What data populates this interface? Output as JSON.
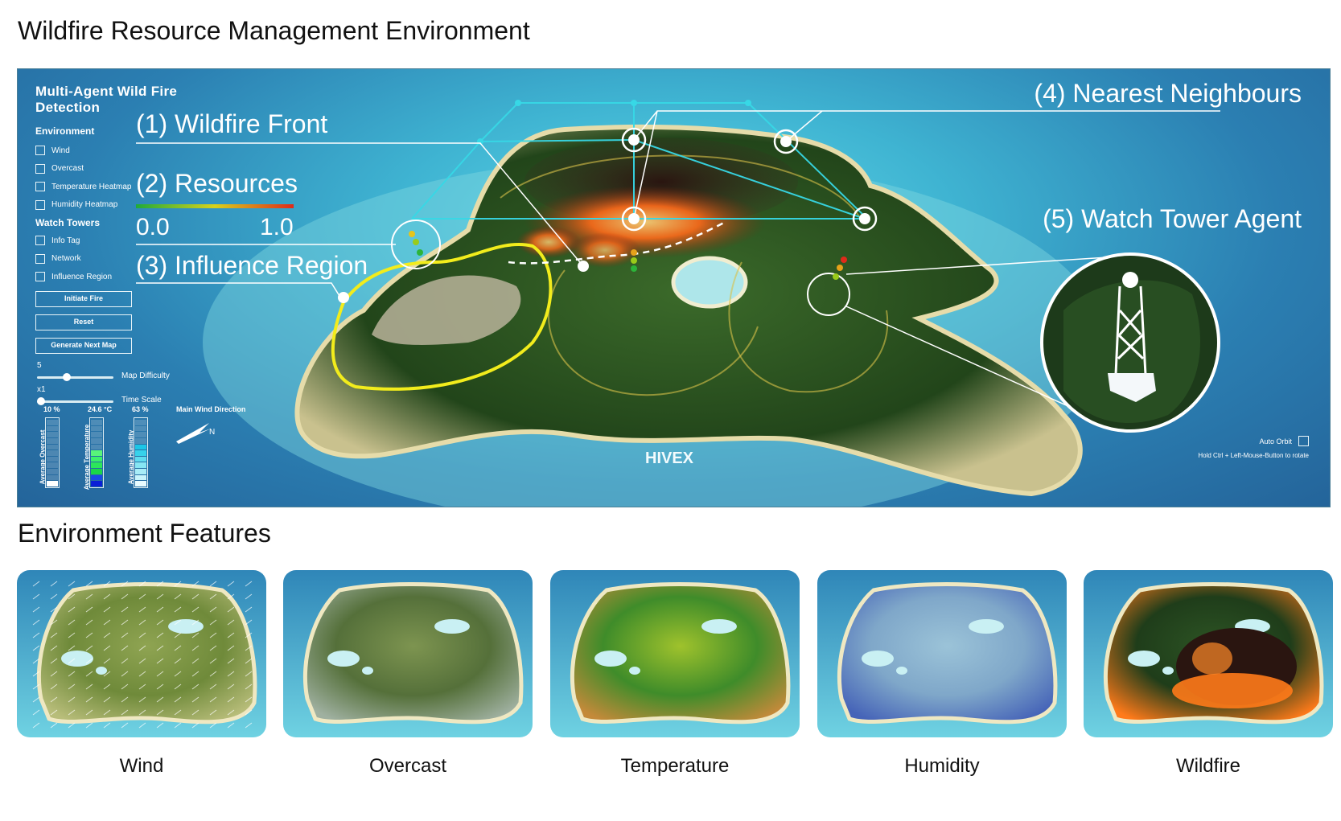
{
  "headings": {
    "main": "Wildfire Resource Management Environment",
    "features": "Environment Features"
  },
  "panel": {
    "title": "Multi-Agent Wild Fire Detection",
    "environment_heading": "Environment",
    "environment_options": [
      "Wind",
      "Overcast",
      "Temperature Heatmap",
      "Humidity Heatmap"
    ],
    "watch_towers_heading": "Watch Towers",
    "tower_options": [
      "Info Tag",
      "Network",
      "Influence Region"
    ],
    "buttons": [
      "Initiate Fire",
      "Reset",
      "Generate Next Map"
    ],
    "map_difficulty": {
      "value": "5",
      "label": "Map Difficulty",
      "level": 0.38
    },
    "time_scale": {
      "value": "x1",
      "label": "Time Scale",
      "level": 0.0
    },
    "gauges": [
      {
        "value": "10 %",
        "label": "Average Overcast",
        "filled": 1,
        "total": 11
      },
      {
        "value": "24.6 °C",
        "label": "Average Temperature",
        "filled": 6,
        "total": 11
      },
      {
        "value": "63 %",
        "label": "Average Humidity",
        "filled": 7,
        "total": 11
      }
    ],
    "wind_label": "Main Wind Direction",
    "compass_north": "N"
  },
  "annotations": {
    "wildfire_front": "(1) Wildfire Front",
    "resources": "(2) Resources",
    "resources_min": "0.0",
    "resources_max": "1.0",
    "influence_region": "(3) Influence Region",
    "nearest_neighbours": "(4) Nearest Neighbours",
    "watch_tower_agent": "(5) Watch Tower Agent"
  },
  "brand": "HIVEX",
  "auto_orbit_label": "Auto Orbit",
  "rotate_hint": "Hold Ctrl + Left-Mouse-Button to rotate",
  "features": [
    {
      "label": "Wind",
      "style": "wind",
      "colors": [
        "#6f8a3a",
        "#8fa452",
        "#b8bd7a"
      ]
    },
    {
      "label": "Overcast",
      "style": "overcast",
      "colors": [
        "#55703a",
        "#7d9450",
        "#9fb0a0"
      ]
    },
    {
      "label": "Temperature",
      "style": "temperature",
      "colors": [
        "#3f8c2a",
        "#9fc22c",
        "#c48a3a"
      ]
    },
    {
      "label": "Humidity",
      "style": "humidity",
      "colors": [
        "#7fa7c9",
        "#9bc3d8",
        "#4664b8"
      ]
    },
    {
      "label": "Wildfire",
      "style": "wildfire",
      "colors": [
        "#1f3d1a",
        "#2d5424",
        "#ff7a1a"
      ]
    }
  ],
  "colors": {
    "ocean": "#3fb4d2",
    "island": "#2f5a22",
    "network": "#37d8e6",
    "influence": "#f2ec1c",
    "fire": "#ff6a1a"
  }
}
